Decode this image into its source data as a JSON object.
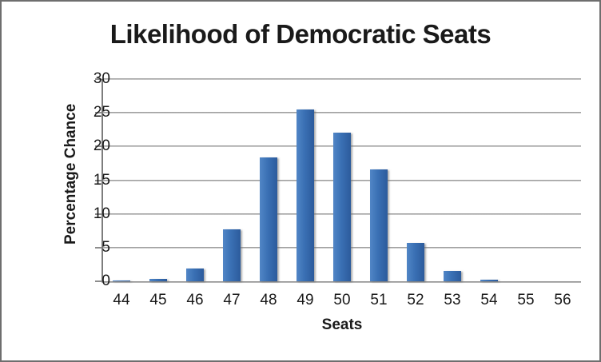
{
  "chart_data": {
    "type": "bar",
    "title": "Likelihood of Democratic Seats",
    "xlabel": "Seats",
    "ylabel": "Percentage Chance",
    "categories": [
      "44",
      "45",
      "46",
      "47",
      "48",
      "49",
      "50",
      "51",
      "52",
      "53",
      "54",
      "55",
      "56"
    ],
    "values": [
      0.1,
      0.3,
      1.9,
      7.7,
      18.4,
      25.5,
      22.1,
      16.6,
      5.7,
      1.6,
      0.2,
      0,
      0
    ],
    "ylim": [
      0,
      30
    ],
    "yticks": [
      0,
      5,
      10,
      15,
      20,
      25,
      30
    ],
    "grid": "horizontal",
    "legend": "none",
    "bar_color": "#3a70b4",
    "bar_gradient": [
      "#5186c6",
      "#2c5b9c"
    ],
    "gridline_color": "#8d8d8d",
    "axis_color": "#7d7d7d"
  }
}
